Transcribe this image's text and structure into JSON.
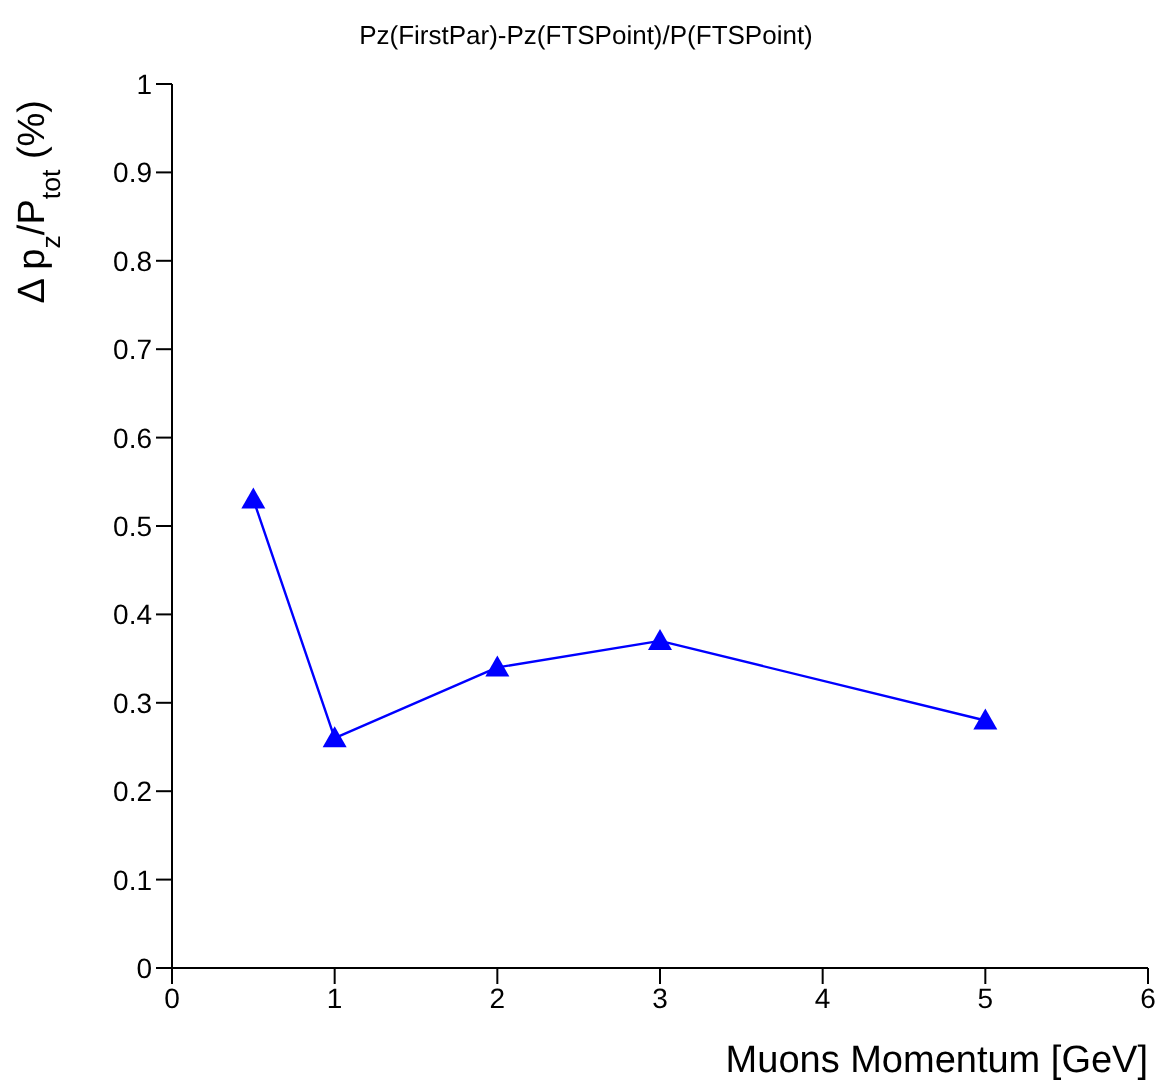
{
  "chart_data": {
    "type": "line",
    "title": "Pz(FirstPar)-Pz(FTSPoint)/P(FTSPoint)",
    "xlabel": "Muons Momentum [GeV]",
    "ylabel": "Δ p$_{z}$/P$_{tot}$ (%)",
    "x": [
      0.5,
      1,
      2,
      3,
      5
    ],
    "series": [
      {
        "color": "#0000ff",
        "values": [
          0.53,
          0.26,
          0.34,
          0.37,
          0.28
        ]
      }
    ],
    "xlim": [
      0,
      6
    ],
    "xticks": [
      0,
      1,
      2,
      3,
      4,
      5,
      6
    ],
    "ylim": [
      0,
      1
    ],
    "yticks": [
      0,
      0.1,
      0.2,
      0.3,
      0.4,
      0.5,
      0.6,
      0.7,
      0.8,
      0.9,
      1
    ],
    "marker": "triangle",
    "grid": false,
    "legend": false
  }
}
